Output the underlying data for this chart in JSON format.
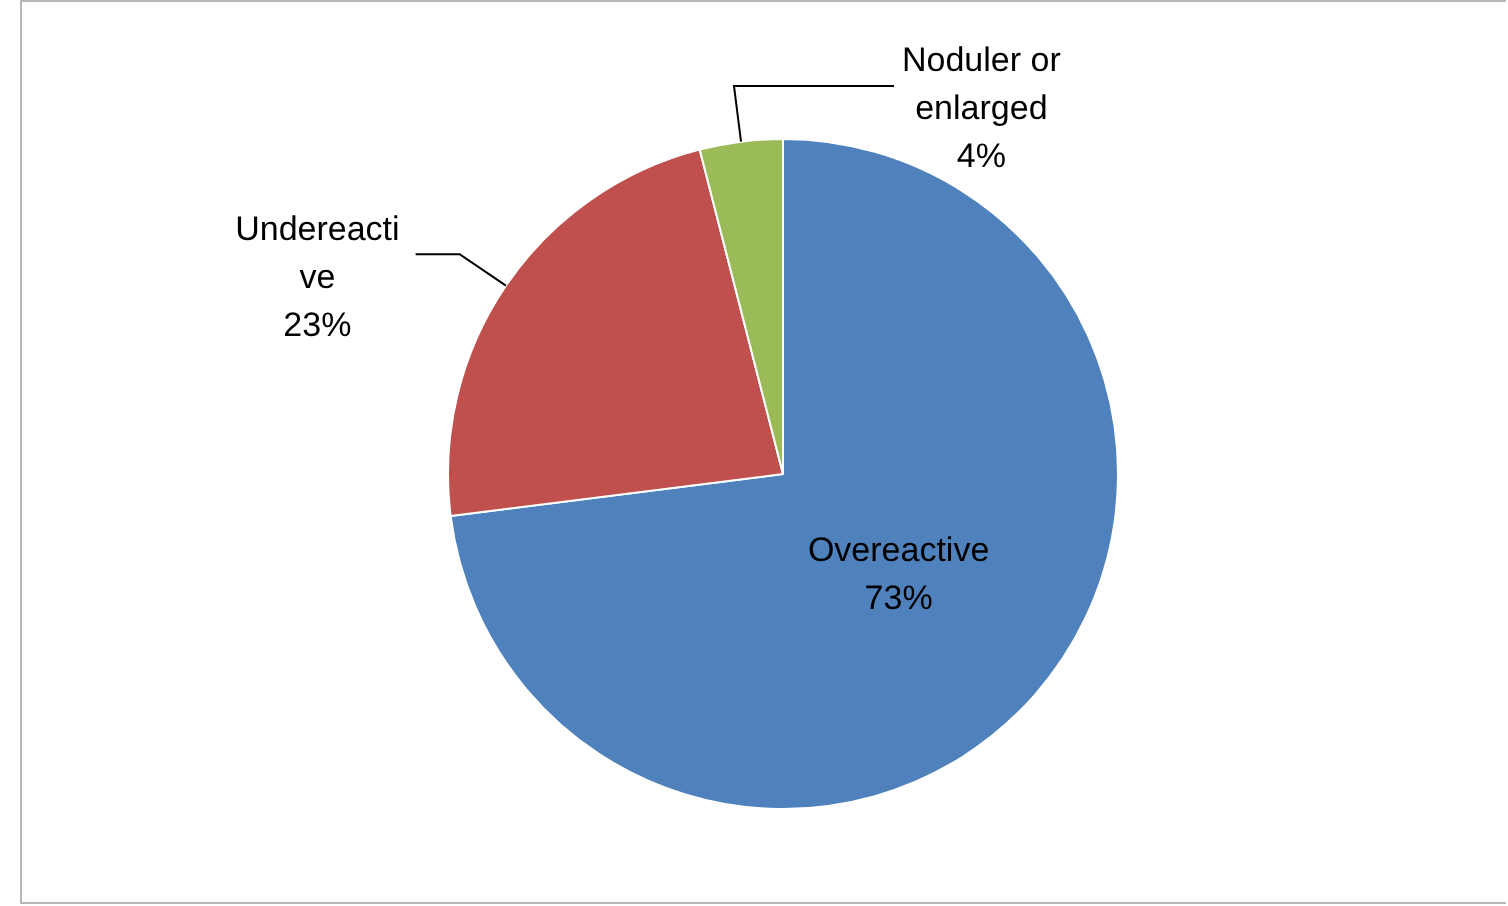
{
  "chart_data": {
    "type": "pie",
    "categories": [
      "Overeactive",
      "Undereactive",
      "Noduler or enlarged"
    ],
    "values": [
      73,
      23,
      4
    ],
    "value_labels": [
      "73%",
      "23%",
      "4%"
    ],
    "colors": [
      "#4f81bd",
      "#c0504d",
      "#9bbb59"
    ],
    "legend": false
  }
}
